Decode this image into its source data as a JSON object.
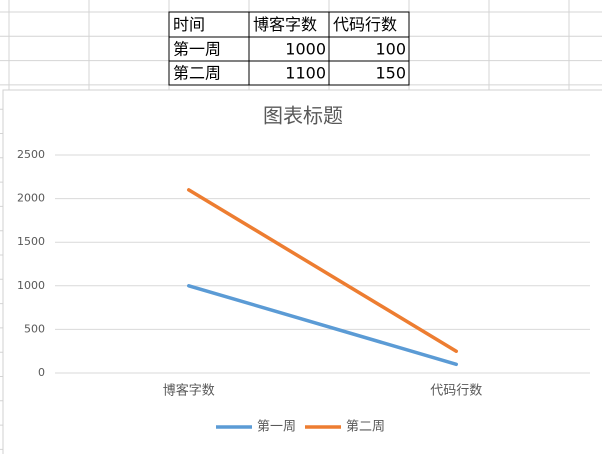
{
  "table": {
    "rows": [
      [
        "时间",
        "博客字数",
        "代码行数"
      ],
      [
        "第一周",
        1000,
        100
      ],
      [
        "第二周",
        1100,
        150
      ]
    ]
  },
  "chart_data": {
    "type": "line",
    "stacked": true,
    "title": "图表标题",
    "categories": [
      "博客字数",
      "代码行数"
    ],
    "series": [
      {
        "name": "第一周",
        "color": "#5b9bd5",
        "values": [
          1000,
          100
        ]
      },
      {
        "name": "第二周",
        "color": "#ed7d31",
        "values": [
          1100,
          150
        ]
      }
    ],
    "ylim": [
      0,
      2500
    ],
    "yticks": [
      0,
      500,
      1000,
      1500,
      2000,
      2500
    ],
    "grid": true,
    "legend": "bottom"
  }
}
